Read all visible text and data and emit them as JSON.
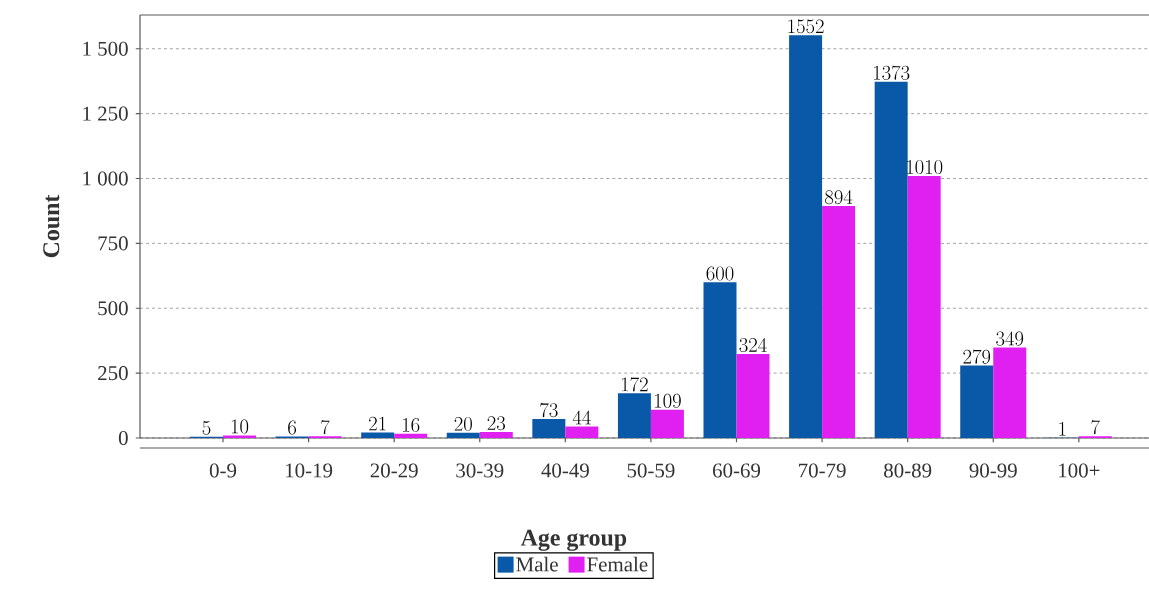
{
  "chart_data": {
    "type": "bar",
    "xlabel": "Age group",
    "ylabel": "Count",
    "categories": [
      "0-9",
      "10-19",
      "20-29",
      "30-39",
      "40-49",
      "50-59",
      "60-69",
      "70-79",
      "80-89",
      "90-99",
      "100+"
    ],
    "series": [
      {
        "name": "Male",
        "color": "#0a58a8",
        "values": [
          5,
          6,
          21,
          20,
          73,
          172,
          600,
          1552,
          1373,
          279,
          1
        ]
      },
      {
        "name": "Female",
        "color": "#e020f0",
        "values": [
          10,
          7,
          16,
          23,
          44,
          109,
          324,
          894,
          1010,
          349,
          7
        ]
      }
    ],
    "ylim": [
      0,
      1630
    ],
    "yticks": [
      0,
      250,
      500,
      750,
      {
        "value": 1000,
        "label": "1 000"
      },
      {
        "value": 1250,
        "label": "1 250"
      },
      {
        "value": 1500,
        "label": "1 500"
      }
    ],
    "grid": "y",
    "legend": "bottom",
    "data_labels": true
  }
}
